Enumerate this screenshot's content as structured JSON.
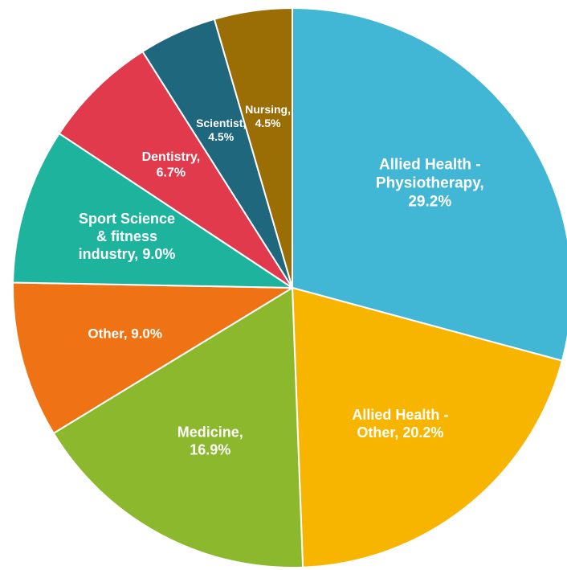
{
  "chart_data": {
    "type": "pie",
    "start": "12 o'clock",
    "direction": "clockwise",
    "slices": [
      {
        "label": "Allied Health - Physiotherapy",
        "value": 29.2,
        "display_lines": [
          "Allied Health -",
          "Physiotherapy,",
          "29.2%"
        ],
        "color": "#41b6d5"
      },
      {
        "label": "Allied Health - Other",
        "value": 20.2,
        "display_lines": [
          "Allied Health -",
          "Other, 20.2%"
        ],
        "color": "#f7b500"
      },
      {
        "label": "Medicine",
        "value": 16.9,
        "display_lines": [
          "Medicine,",
          "16.9%"
        ],
        "color": "#8bb82c"
      },
      {
        "label": "Other",
        "value": 9.0,
        "display_lines": [
          "Other, 9.0%"
        ],
        "color": "#ef7314"
      },
      {
        "label": "Sport Science & fitness industry",
        "value": 9.0,
        "display_lines": [
          "Sport Science",
          "& fitness",
          "industry, 9.0%"
        ],
        "color": "#1db39c"
      },
      {
        "label": "Dentistry",
        "value": 6.7,
        "display_lines": [
          "Dentistry,",
          "6.7%"
        ],
        "color": "#e03a4c"
      },
      {
        "label": "Scientist",
        "value": 4.5,
        "display_lines": [
          "Scientist,",
          "4.5%"
        ],
        "color": "#1e677d"
      },
      {
        "label": "Nursing",
        "value": 4.5,
        "display_lines": [
          "Nursing,",
          "4.5%"
        ],
        "color": "#9b6d05"
      }
    ]
  }
}
